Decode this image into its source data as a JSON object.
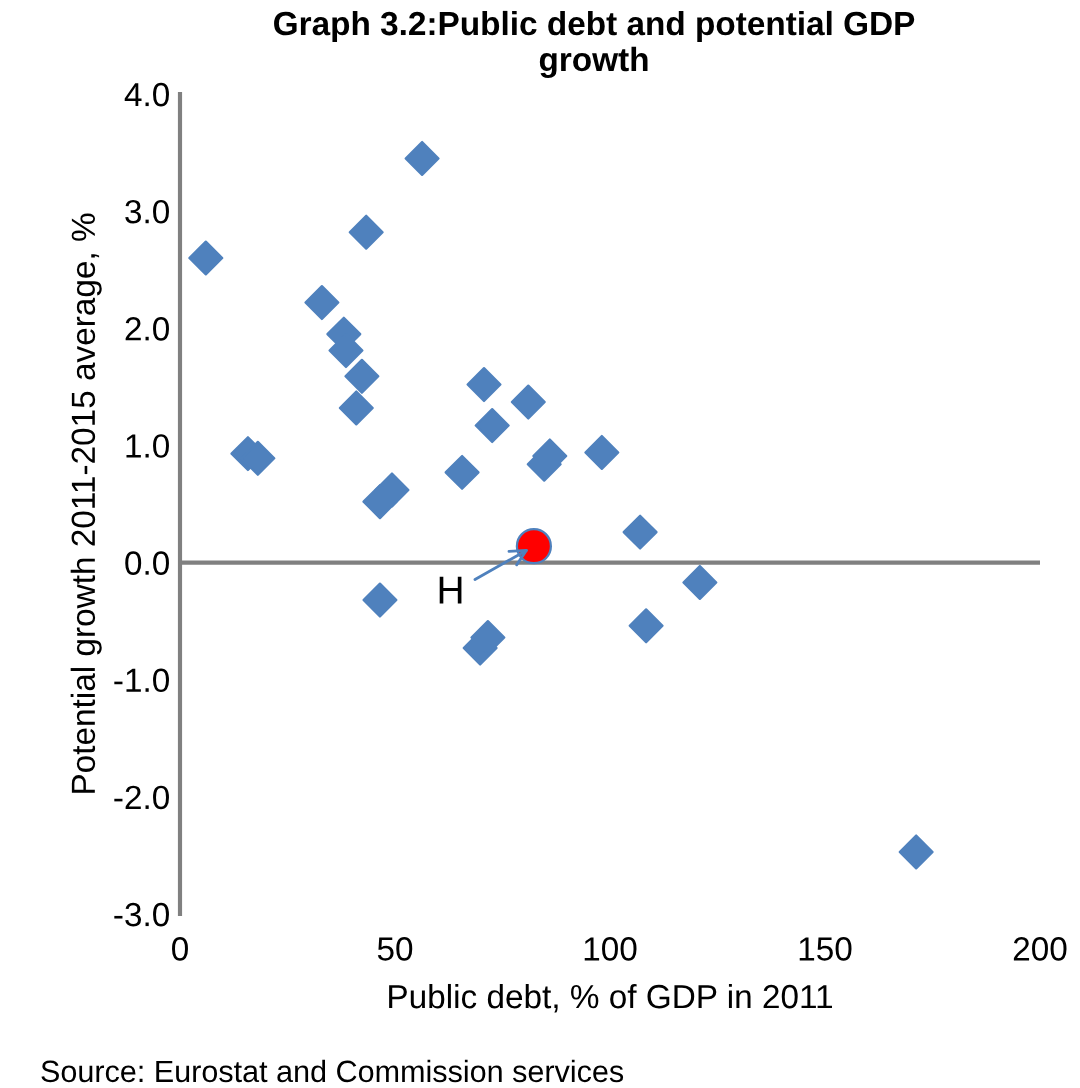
{
  "chart_data": {
    "type": "scatter",
    "title": "Graph 3.2:Public debt and potential GDP growth",
    "xlabel": "Public debt, % of GDP in 2011",
    "ylabel": "Potential growth 2011-2015 average, %",
    "xlim": [
      0,
      200
    ],
    "xticks": [
      0,
      50,
      100,
      150,
      200
    ],
    "ylim": [
      -3.0,
      4.0
    ],
    "yticks": [
      {
        "value": -3,
        "label": "-3.0"
      },
      {
        "value": -2,
        "label": "-2.0"
      },
      {
        "value": -1,
        "label": "-1.0"
      },
      {
        "value": 0,
        "label": "0.0"
      },
      {
        "value": 1,
        "label": "1.0"
      },
      {
        "value": 2,
        "label": "2.0"
      },
      {
        "value": 3,
        "label": "3.0"
      },
      {
        "value": 4,
        "label": "4.0"
      }
    ],
    "grid": false,
    "ref_lines": [
      {
        "axis": "y",
        "value": 0,
        "color": "#808080"
      }
    ],
    "series": [
      {
        "color": "#4f81bd",
        "marker": "diamond",
        "x": [
          6.0,
          56.3,
          43.3,
          33,
          38.1,
          38.6,
          42.3,
          41,
          15.8,
          18.1,
          70.7,
          81,
          72.6,
          49.3,
          46.5,
          65.6,
          86,
          84.7,
          98.1,
          107,
          120.9,
          108.4,
          46.5,
          69.8,
          71.6,
          171.2
        ],
        "values": [
          2.6,
          3.45,
          2.82,
          2.22,
          1.95,
          1.81,
          1.59,
          1.32,
          0.93,
          0.89,
          1.52,
          1.37,
          1.17,
          0.62,
          0.52,
          0.77,
          0.91,
          0.84,
          0.94,
          0.26,
          -0.17,
          -0.54,
          -0.32,
          -0.73,
          -0.64,
          -2.47
        ]
      },
      {
        "color": "#ff0000",
        "marker": "circle",
        "x": [
          82.3
        ],
        "values": [
          0.14
        ]
      }
    ],
    "annotations": [
      {
        "text": "H",
        "x": 82.3,
        "y": 0.14
      },
      "Source: Eurostat and Commission services"
    ]
  }
}
